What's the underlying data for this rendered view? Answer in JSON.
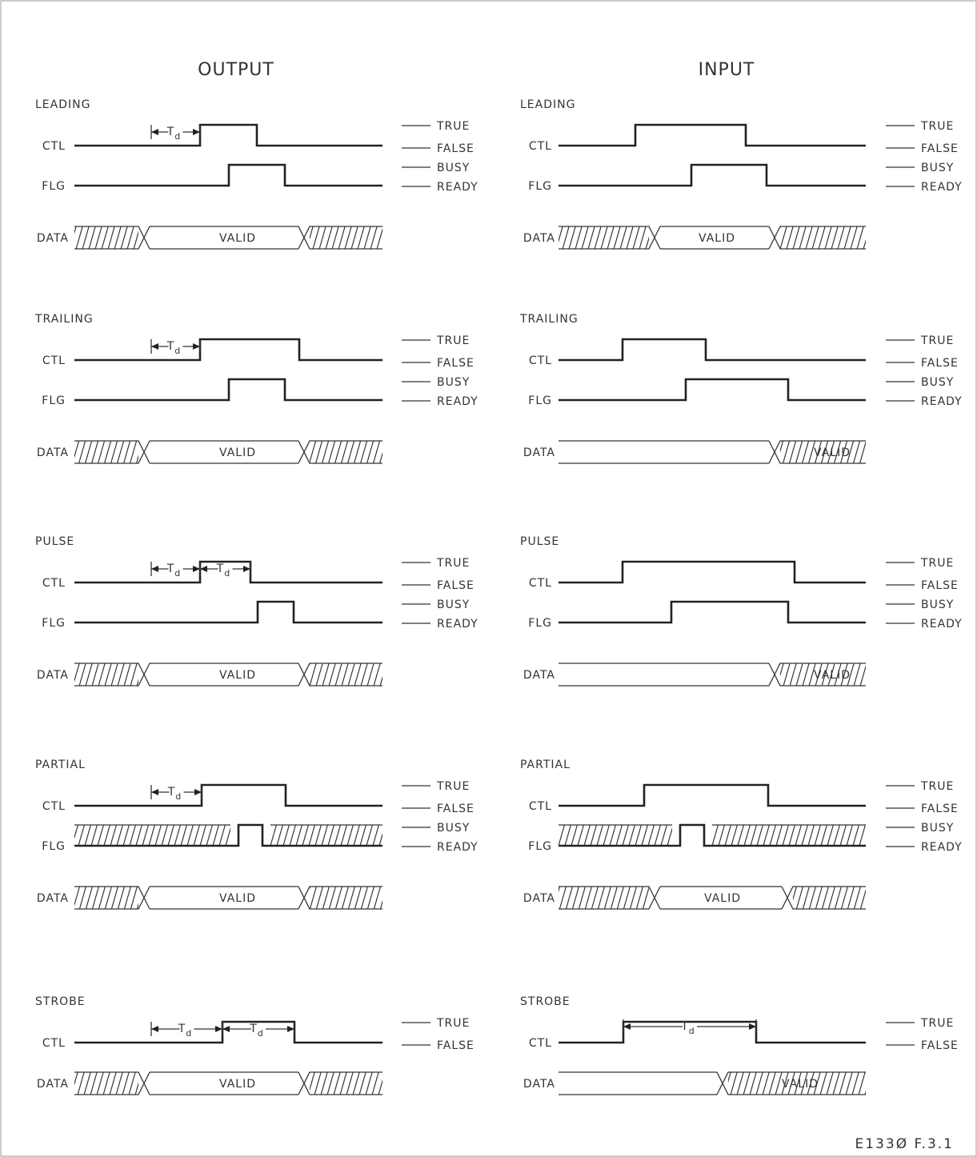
{
  "headings": {
    "output": "OUTPUT",
    "input": "INPUT"
  },
  "signal_names": {
    "ctl": "CTL",
    "flg": "FLG",
    "data": "DATA"
  },
  "level_labels": {
    "true": "TRUE",
    "false": "FALSE",
    "busy": "BUSY",
    "ready": "READY"
  },
  "valid_label": "VALID",
  "td_label": "T",
  "td_subscript": "d",
  "modes": [
    {
      "id": "leading",
      "label": "LEADING"
    },
    {
      "id": "trailing",
      "label": "TRAILING"
    },
    {
      "id": "pulse",
      "label": "PULSE"
    },
    {
      "id": "partial",
      "label": "PARTIAL"
    },
    {
      "id": "strobe",
      "label": "STROBE"
    }
  ],
  "figure_id": "E133Ø F.3.1"
}
